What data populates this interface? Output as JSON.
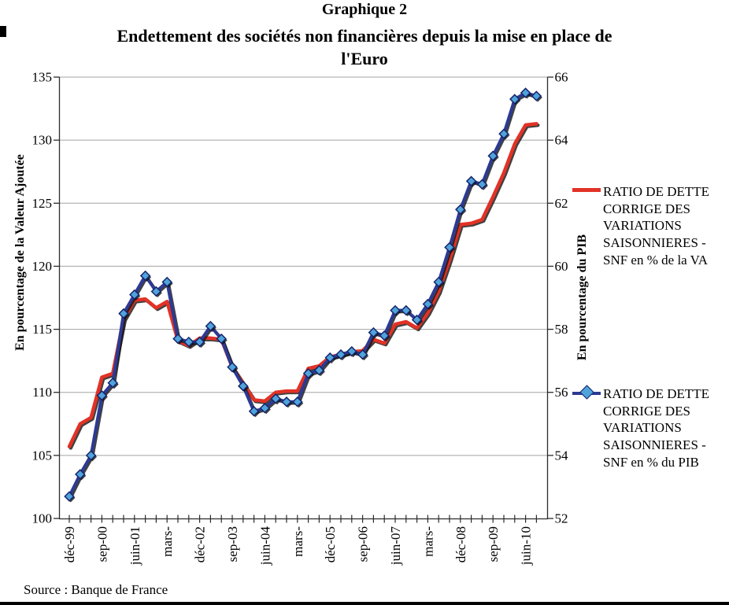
{
  "page": {
    "figure_label": "Graphique 2",
    "title_line1": "Endettement des sociétés non financières depuis la mise en place de",
    "title_line2": "l'Euro",
    "source": "Source : Banque de France"
  },
  "chart_data": {
    "type": "line",
    "n_points": 44,
    "x_visible_ticks": [
      {
        "index": 0,
        "label": "déc-99"
      },
      {
        "index": 3,
        "label": "sep-00"
      },
      {
        "index": 6,
        "label": "juin-01"
      },
      {
        "index": 9,
        "label": "mars-"
      },
      {
        "index": 12,
        "label": "déc-02"
      },
      {
        "index": 15,
        "label": "sep-03"
      },
      {
        "index": 18,
        "label": "juin-04"
      },
      {
        "index": 21,
        "label": "mars-"
      },
      {
        "index": 24,
        "label": "déc-05"
      },
      {
        "index": 27,
        "label": "sep-06"
      },
      {
        "index": 30,
        "label": "juin-07"
      },
      {
        "index": 33,
        "label": "mars-"
      },
      {
        "index": 36,
        "label": "déc-08"
      },
      {
        "index": 39,
        "label": "sep-09"
      },
      {
        "index": 42,
        "label": "juin-10"
      }
    ],
    "y_left": {
      "title": "En pourcentage de la Valeur Ajoutée",
      "min": 100,
      "max": 135,
      "step": 5
    },
    "y_right": {
      "title": "En pourcentage du PIB",
      "min": 52,
      "max": 66,
      "step": 2
    },
    "grid": true,
    "legend_position": "right",
    "colors": {
      "grid": "#a3a3a3",
      "axis": "#2b2b2b",
      "shadow": "#111111"
    },
    "series": [
      {
        "name": "RATIO DE DETTE CORRIGE DES VARIATIONS SAISONNIERES - SNF en % de la VA",
        "legend_lines": [
          "RATIO DE DETTE",
          "CORRIGE DES",
          "VARIATIONS",
          "SAISONNIERES -",
          "SNF en % de la VA"
        ],
        "axis": "left",
        "color": "#e23226",
        "line_width": 4.5,
        "marker": "none",
        "values": [
          105.7,
          107.5,
          108.0,
          111.2,
          111.5,
          115.8,
          117.3,
          117.4,
          116.7,
          117.2,
          114.1,
          113.7,
          114.3,
          114.3,
          114.2,
          112.0,
          110.7,
          109.4,
          109.3,
          110.0,
          110.1,
          110.1,
          111.9,
          112.1,
          112.8,
          113.0,
          113.2,
          113.3,
          114.2,
          113.9,
          115.4,
          115.6,
          115.1,
          116.3,
          118.0,
          120.5,
          123.3,
          123.4,
          123.7,
          125.5,
          127.4,
          129.7,
          131.2,
          131.3
        ]
      },
      {
        "name": "RATIO DE DETTE CORRIGE DES VARIATIONS SAISONNIERES - SNF en % du PIB",
        "legend_lines": [
          "RATIO DE DETTE",
          "CORRIGE DES",
          "VARIATIONS",
          "SAISONNIERES -",
          "SNF en % du PIB"
        ],
        "axis": "right",
        "color": "#2c3a94",
        "line_width": 4,
        "marker": "diamond",
        "marker_color": "#4fa3da",
        "marker_edge": "#16246b",
        "values": [
          52.7,
          53.4,
          54.0,
          55.9,
          56.3,
          58.5,
          59.1,
          59.7,
          59.2,
          59.5,
          57.7,
          57.6,
          57.6,
          58.1,
          57.7,
          56.8,
          56.2,
          55.4,
          55.5,
          55.8,
          55.7,
          55.7,
          56.6,
          56.7,
          57.1,
          57.2,
          57.3,
          57.2,
          57.9,
          57.8,
          58.6,
          58.6,
          58.3,
          58.8,
          59.5,
          60.6,
          61.8,
          62.7,
          62.6,
          63.5,
          64.2,
          65.3,
          65.5,
          65.4
        ]
      }
    ]
  }
}
